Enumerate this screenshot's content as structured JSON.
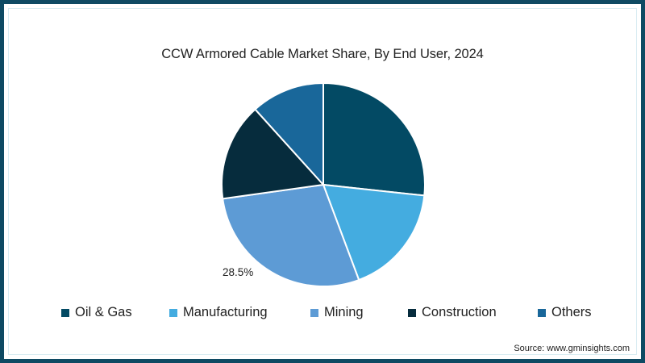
{
  "chart_data": {
    "type": "pie",
    "title": "CCW Armored Cable Market Share, By End User, 2024",
    "categories": [
      "Oil & Gas",
      "Manufacturing",
      "Mining",
      "Construction",
      "Others"
    ],
    "values": [
      26.7,
      17.6,
      28.5,
      15.5,
      11.7
    ],
    "unit": "%",
    "colors": [
      "#034a64",
      "#44ace0",
      "#5d9bd5",
      "#062c3d",
      "#19679a"
    ],
    "start_angle_deg": 0,
    "direction": "clockwise",
    "data_labels": [
      {
        "category": "Mining",
        "text": "28.5%"
      }
    ],
    "legend_position": "bottom",
    "source": "Source: www.gminsights.com"
  },
  "title": "CCW Armored Cable Market Share, By End User, 2024",
  "data_label_mining": "28.5%",
  "legend": [
    {
      "label": "Oil & Gas",
      "color": "#034a64"
    },
    {
      "label": "Manufacturing",
      "color": "#44ace0"
    },
    {
      "label": "Mining",
      "color": "#5d9bd5"
    },
    {
      "label": "Construction",
      "color": "#062c3d"
    },
    {
      "label": "Others",
      "color": "#19679a"
    }
  ],
  "source": "Source: www.gminsights.com",
  "frame_color": "#0e4a63"
}
